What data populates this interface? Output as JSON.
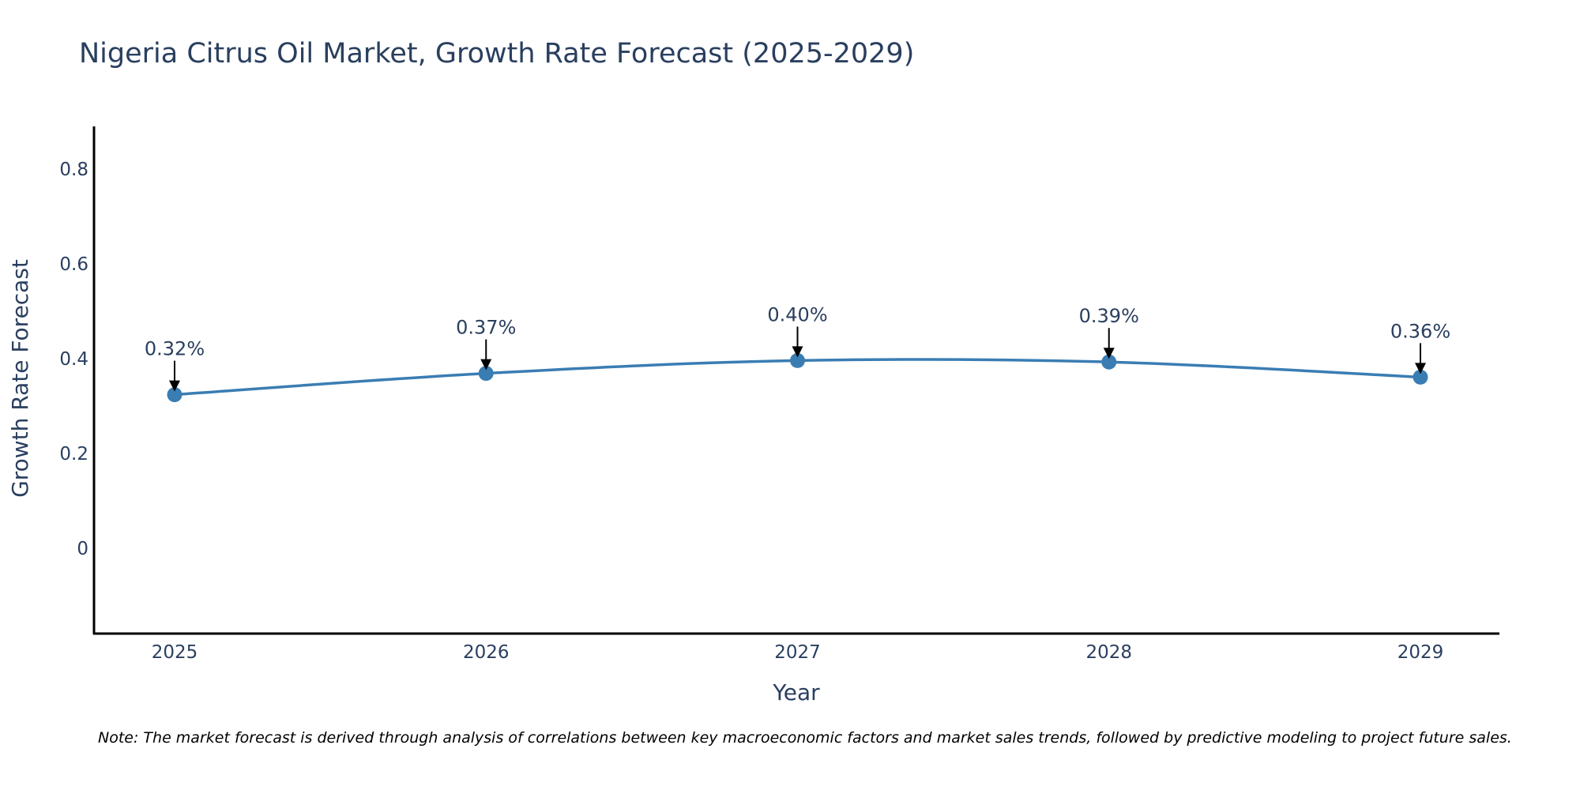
{
  "chart_data": {
    "type": "line",
    "title": "Nigeria Citrus Oil Market, Growth Rate Forecast (2025-2029)",
    "xlabel": "Year",
    "ylabel": "Growth Rate Forecast",
    "categories": [
      "2025",
      "2026",
      "2027",
      "2028",
      "2029"
    ],
    "series": [
      {
        "name": "Growth Rate Forecast",
        "values": [
          0.324,
          0.369,
          0.396,
          0.393,
          0.361
        ],
        "labels": [
          "0.32%",
          "0.37%",
          "0.40%",
          "0.39%",
          "0.36%"
        ],
        "color": "#3a7db3"
      }
    ],
    "ylim": [
      -0.18,
      0.89
    ],
    "yticks": [
      0,
      0.2,
      0.4,
      0.6,
      0.8
    ],
    "ytick_labels": [
      "0",
      "0.2",
      "0.4",
      "0.6",
      "0.8"
    ],
    "grid": false,
    "line_shape": "spline"
  },
  "note": "Note: The market forecast is derived through analysis of correlations between key macroeconomic factors and market sales trends, followed by predictive modeling to project future sales.",
  "colors": {
    "axis": "#000000",
    "text": "#2a3f5f",
    "line": "#3a7db3",
    "arrow": "#000000"
  }
}
